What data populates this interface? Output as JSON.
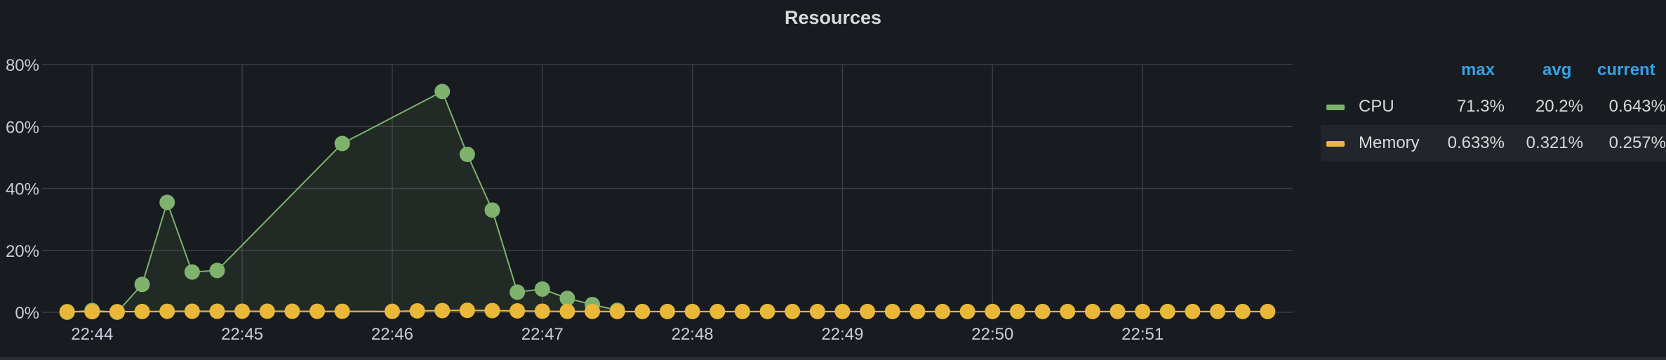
{
  "panel": {
    "title": "Resources"
  },
  "legend": {
    "columns": {
      "max": "max",
      "avg": "avg",
      "current": "current"
    },
    "rows": [
      {
        "name": "CPU",
        "color": "#7eb26d",
        "max": "71.3%",
        "avg": "20.2%",
        "current": "0.643%"
      },
      {
        "name": "Memory",
        "color": "#eab839",
        "max": "0.633%",
        "avg": "0.321%",
        "current": "0.257%"
      }
    ]
  },
  "chart_data": {
    "type": "line",
    "title": "Resources",
    "xlabel": "",
    "ylabel": "",
    "grid": true,
    "legend_position": "right",
    "x_tick_labels": [
      "22:44",
      "22:45",
      "22:46",
      "22:47",
      "22:48",
      "22:49",
      "22:50",
      "22:51"
    ],
    "y_tick_labels": [
      "0%",
      "20%",
      "40%",
      "60%",
      "80%"
    ],
    "ylim": [
      0,
      80
    ],
    "xlim": [
      "22:43:50",
      "22:51:50"
    ],
    "series": [
      {
        "name": "CPU",
        "color": "#7eb26d",
        "area_fill": true,
        "points": [
          [
            "22:43:50",
            0
          ],
          [
            "22:44:00",
            0.6
          ],
          [
            "22:44:10",
            0
          ],
          [
            "22:44:20",
            9
          ],
          [
            "22:44:30",
            35.5
          ],
          [
            "22:44:40",
            13
          ],
          [
            "22:44:50",
            13.5
          ],
          [
            "22:45:40",
            54.5
          ],
          [
            "22:46:20",
            71.3
          ],
          [
            "22:46:30",
            51
          ],
          [
            "22:46:40",
            33
          ],
          [
            "22:46:50",
            6.5
          ],
          [
            "22:47:00",
            7.5
          ],
          [
            "22:47:10",
            4.5
          ],
          [
            "22:47:20",
            2.5
          ],
          [
            "22:47:30",
            0.64
          ]
        ]
      },
      {
        "name": "Memory",
        "color": "#eab839",
        "area_fill": false,
        "points": [
          [
            "22:43:50",
            0.2
          ],
          [
            "22:44:00",
            0.2
          ],
          [
            "22:44:10",
            0.2
          ],
          [
            "22:44:20",
            0.26
          ],
          [
            "22:44:30",
            0.32
          ],
          [
            "22:44:40",
            0.33
          ],
          [
            "22:44:50",
            0.33
          ],
          [
            "22:45:00",
            0.34
          ],
          [
            "22:45:10",
            0.34
          ],
          [
            "22:45:20",
            0.33
          ],
          [
            "22:45:30",
            0.32
          ],
          [
            "22:45:40",
            0.32
          ],
          [
            "22:46:00",
            0.3
          ],
          [
            "22:46:10",
            0.45
          ],
          [
            "22:46:20",
            0.55
          ],
          [
            "22:46:30",
            0.63
          ],
          [
            "22:46:40",
            0.55
          ],
          [
            "22:46:50",
            0.45
          ],
          [
            "22:47:00",
            0.35
          ],
          [
            "22:47:10",
            0.3
          ],
          [
            "22:47:20",
            0.28
          ],
          [
            "22:47:30",
            0.26
          ],
          [
            "22:47:40",
            0.26
          ],
          [
            "22:47:50",
            0.26
          ],
          [
            "22:48:00",
            0.26
          ],
          [
            "22:48:10",
            0.26
          ],
          [
            "22:48:20",
            0.26
          ],
          [
            "22:48:30",
            0.26
          ],
          [
            "22:48:40",
            0.26
          ],
          [
            "22:48:50",
            0.26
          ],
          [
            "22:49:00",
            0.26
          ],
          [
            "22:49:10",
            0.26
          ],
          [
            "22:49:20",
            0.26
          ],
          [
            "22:49:30",
            0.26
          ],
          [
            "22:49:40",
            0.26
          ],
          [
            "22:49:50",
            0.26
          ],
          [
            "22:50:00",
            0.26
          ],
          [
            "22:50:10",
            0.26
          ],
          [
            "22:50:20",
            0.26
          ],
          [
            "22:50:30",
            0.26
          ],
          [
            "22:50:40",
            0.26
          ],
          [
            "22:50:50",
            0.26
          ],
          [
            "22:51:00",
            0.26
          ],
          [
            "22:51:10",
            0.26
          ],
          [
            "22:51:20",
            0.26
          ],
          [
            "22:51:30",
            0.26
          ],
          [
            "22:51:40",
            0.26
          ],
          [
            "22:51:50",
            0.257
          ]
        ]
      }
    ]
  }
}
